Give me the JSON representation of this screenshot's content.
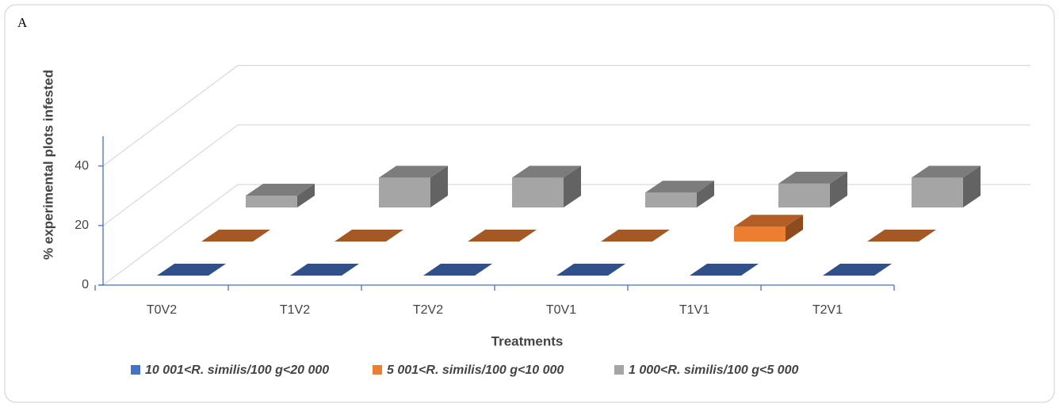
{
  "chart_data": {
    "type": "bar3d",
    "panel_label": "A",
    "x_label": "Treatments",
    "y_label": "% experimental plots infested",
    "categories": [
      "T0V2",
      "T1V2",
      "T2V2",
      "T0V1",
      "T1V1",
      "T2V1"
    ],
    "series": [
      {
        "name": "10 001<R. similis/100 g<20 000",
        "color": "#4472c4",
        "values": [
          0,
          0,
          0,
          0,
          0,
          0
        ]
      },
      {
        "name": "5 001<R. similis/100 g<10 000",
        "color": "#ed7d31",
        "values": [
          0,
          0,
          0,
          0,
          5,
          0
        ]
      },
      {
        "name": "1 000<R. similis/100 g<5 000",
        "color": "#a5a5a5",
        "values": [
          4,
          10,
          10,
          5,
          8,
          10
        ]
      }
    ],
    "ylim": [
      0,
      50
    ],
    "yticks": [
      0,
      20,
      40
    ],
    "grid": true
  }
}
